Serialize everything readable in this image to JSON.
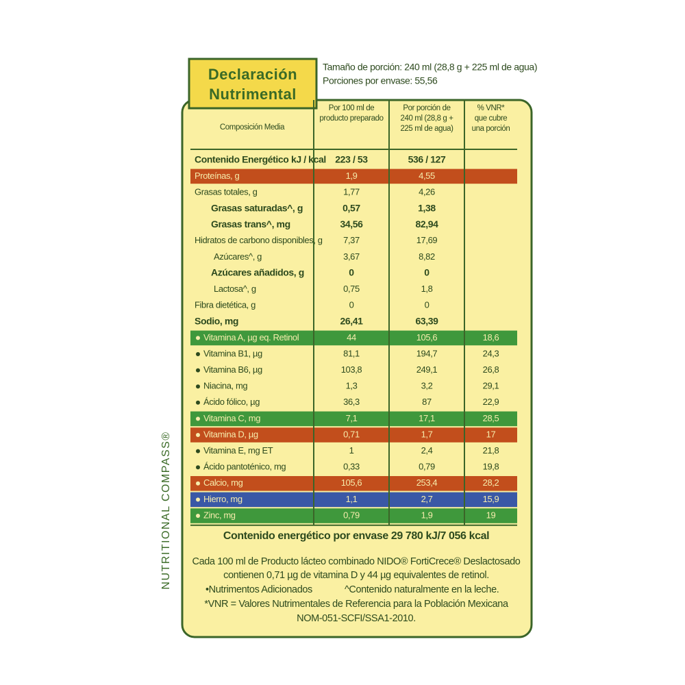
{
  "header": {
    "title_lines": [
      "Declaración",
      "Nutrimental"
    ],
    "serving": "Tamaño de porción: 240 ml (28,8 g + 225 ml de agua)",
    "servings": "Porciones por envase: 55,56"
  },
  "side_brand": "NUTRITIONAL COMPASS®",
  "table": {
    "columns": [
      [
        "Composición Media"
      ],
      [
        "Por 100 ml de",
        "producto preparado"
      ],
      [
        "Por porción de",
        "240 ml (28,8 g +",
        "225 ml de agua)"
      ],
      [
        "% VNR*",
        "que cubre",
        "una porción"
      ]
    ],
    "rows": [
      {
        "label": "Contenido Energético kJ / kcal",
        "per100": "223 / 53",
        "portion": "536 / 127",
        "bold": true
      },
      {
        "label": "Proteínas, g",
        "per100": "1,9",
        "portion": "4,55",
        "color": "#c24e1c"
      },
      {
        "label": "Grasas totales, g",
        "per100": "1,77",
        "portion": "4,26"
      },
      {
        "label": "Grasas saturadas^, g",
        "per100": "0,57",
        "portion": "1,38",
        "bold": true,
        "indent": 1
      },
      {
        "label": "Grasas trans^, mg",
        "per100": "34,56",
        "portion": "82,94",
        "bold": true,
        "indent": 1
      },
      {
        "label": "Hidratos de carbono disponibles, g",
        "per100": "7,37",
        "portion": "17,69"
      },
      {
        "label": "Azúcares^, g",
        "per100": "3,67",
        "portion": "8,82",
        "indent": 1
      },
      {
        "label": "Azúcares añadidos, g",
        "per100": "0",
        "portion": "0",
        "bold": true,
        "indent": 1
      },
      {
        "label": "Lactosa^, g",
        "per100": "0,75",
        "portion": "1,8",
        "indent": 1
      },
      {
        "label": "Fibra dietética, g",
        "per100": "0",
        "portion": "0"
      },
      {
        "label": "Sodio, mg",
        "per100": "26,41",
        "portion": "63,39",
        "bold": true
      },
      {
        "label": "Vitamina A, µg eq. Retinol",
        "per100": "44",
        "portion": "105,6",
        "vnr": "18,6",
        "added": true,
        "color": "#3f983c"
      },
      {
        "label": "Vitamina B1, µg",
        "per100": "81,1",
        "portion": "194,7",
        "vnr": "24,3",
        "added": true
      },
      {
        "label": "Vitamina B6, µg",
        "per100": "103,8",
        "portion": "249,1",
        "vnr": "26,8",
        "added": true
      },
      {
        "label": "Niacina, mg",
        "per100": "1,3",
        "portion": "3,2",
        "vnr": "29,1",
        "added": true
      },
      {
        "label": "Ácido fólico, µg",
        "per100": "36,3",
        "portion": "87",
        "vnr": "22,9",
        "added": true
      },
      {
        "label": "Vitamina C, mg",
        "per100": "7,1",
        "portion": "17,1",
        "vnr": "28,5",
        "added": true,
        "color": "#3f983c"
      },
      {
        "label": "Vitamina D, µg",
        "per100": "0,71",
        "portion": "1,7",
        "vnr": "17",
        "added": true,
        "color": "#c24e1c"
      },
      {
        "label": "Vitamina E, mg ET",
        "per100": "1",
        "portion": "2,4",
        "vnr": "21,8",
        "added": true
      },
      {
        "label": "Ácido pantoténico, mg",
        "per100": "0,33",
        "portion": "0,79",
        "vnr": "19,8",
        "added": true
      },
      {
        "label": "Calcio, mg",
        "per100": "105,6",
        "portion": "253,4",
        "vnr": "28,2",
        "added": true,
        "color": "#c24e1c"
      },
      {
        "label": "Hierro, mg",
        "per100": "1,1",
        "portion": "2,7",
        "vnr": "15,9",
        "added": true,
        "color": "#3a58a6"
      },
      {
        "label": "Zinc, mg",
        "per100": "0,79",
        "portion": "1,9",
        "vnr": "19",
        "added": true,
        "color": "#3f983c"
      }
    ]
  },
  "footer": {
    "total": "Contenido energético por envase 29 780 kJ/7 056 kcal",
    "notes": [
      "Cada 100 ml de Producto lácteo combinado NIDO® FortiCrece® Deslactosado",
      "contienen 0,71 µg de vitamina D y 44 µg equivalentes de retinol."
    ],
    "legend_added": "•Nutrimentos Adicionados",
    "legend_natural": "^Contenido naturalmente en la leche.",
    "vnr_note": "*VNR = Valores Nutrimentales de Referencia para la Población Mexicana",
    "norm": "NOM-051-SCFI/SSA1-2010."
  }
}
